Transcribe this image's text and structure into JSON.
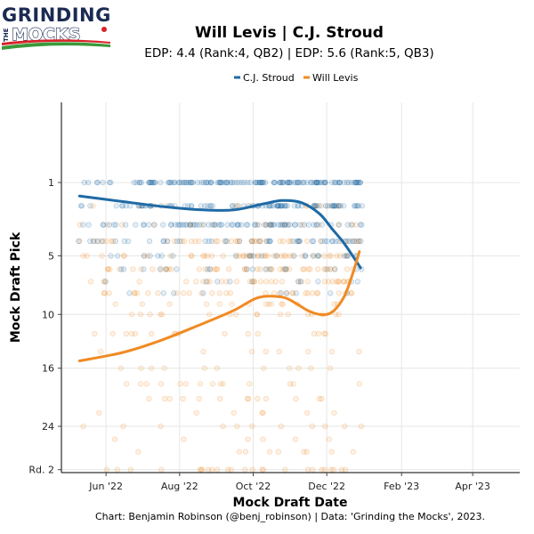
{
  "logo": {
    "line1": "GRINDING",
    "line2": "THE",
    "line3": "MOCKS"
  },
  "colors": {
    "stroud": "#1f6aa5",
    "levis": "#f08a24",
    "grid": "#e6e6e6",
    "navy": "#1a2a52",
    "red": "#d8232a",
    "green": "#3a9a3a"
  },
  "chart_data": {
    "type": "scatter",
    "title": "Will Levis | C.J. Stroud",
    "subtitle": "EDP: 4.4 (Rank:4, QB2) | EDP: 5.6 (Rank:5, QB3)",
    "xlabel": "Mock Draft Date",
    "ylabel": "Mock Draft Pick",
    "caption": "Chart: Benjamin Robinson (@benj_robinson) | Data: 'Grinding the Mocks', 2023.",
    "x_domain": [
      "2022-04-25",
      "2023-05-10"
    ],
    "y_range": [
      -0.5,
      31.5
    ],
    "y_sqrt_scale": true,
    "y_ticks": [
      {
        "value": 1,
        "label": "1"
      },
      {
        "value": 5,
        "label": "5"
      },
      {
        "value": 10,
        "label": "10"
      },
      {
        "value": 16,
        "label": "16"
      },
      {
        "value": 24,
        "label": "24"
      },
      {
        "value": 31,
        "label": "Rd. 2"
      }
    ],
    "x_ticks": [
      {
        "date": "2022-06-01",
        "label": "Jun '22"
      },
      {
        "date": "2022-08-01",
        "label": "Aug '22"
      },
      {
        "date": "2022-10-01",
        "label": "Oct '22"
      },
      {
        "date": "2022-12-01",
        "label": "Dec '22"
      },
      {
        "date": "2023-02-01",
        "label": "Feb '23"
      },
      {
        "date": "2023-04-01",
        "label": "Apr '23"
      }
    ],
    "legend": [
      "C.J. Stroud",
      "Will Levis"
    ],
    "series": [
      {
        "name": "C.J. Stroud",
        "color": "#1f6aa5",
        "trend": [
          {
            "x": "2022-05-10",
            "y": 1.55
          },
          {
            "x": "2022-06-15",
            "y": 1.8
          },
          {
            "x": "2022-07-20",
            "y": 2.05
          },
          {
            "x": "2022-08-20",
            "y": 2.2
          },
          {
            "x": "2022-09-15",
            "y": 2.2
          },
          {
            "x": "2022-10-10",
            "y": 1.9
          },
          {
            "x": "2022-10-25",
            "y": 1.75
          },
          {
            "x": "2022-11-10",
            "y": 1.85
          },
          {
            "x": "2022-11-25",
            "y": 2.4
          },
          {
            "x": "2022-12-05",
            "y": 3.2
          },
          {
            "x": "2022-12-15",
            "y": 4.1
          },
          {
            "x": "2022-12-24",
            "y": 5.2
          },
          {
            "x": "2022-12-29",
            "y": 5.9
          }
        ],
        "point_density": [
          {
            "value": 1,
            "weight": 0.3
          },
          {
            "value": 2,
            "weight": 0.24
          },
          {
            "value": 3,
            "weight": 0.17
          },
          {
            "value": 4,
            "weight": 0.12
          },
          {
            "value": 5,
            "weight": 0.07
          },
          {
            "value": 6,
            "weight": 0.05
          },
          {
            "value": 7,
            "weight": 0.03
          },
          {
            "value": 8,
            "weight": 0.02
          }
        ]
      },
      {
        "name": "Will Levis",
        "color": "#f08a24",
        "trend": [
          {
            "x": "2022-05-10",
            "y": 15.1
          },
          {
            "x": "2022-06-15",
            "y": 14.1
          },
          {
            "x": "2022-07-15",
            "y": 12.8
          },
          {
            "x": "2022-08-15",
            "y": 11.2
          },
          {
            "x": "2022-09-15",
            "y": 9.6
          },
          {
            "x": "2022-10-05",
            "y": 8.4
          },
          {
            "x": "2022-10-25",
            "y": 8.35
          },
          {
            "x": "2022-11-05",
            "y": 8.9
          },
          {
            "x": "2022-11-15",
            "y": 9.6
          },
          {
            "x": "2022-11-25",
            "y": 10.0
          },
          {
            "x": "2022-12-05",
            "y": 9.8
          },
          {
            "x": "2022-12-15",
            "y": 8.4
          },
          {
            "x": "2022-12-22",
            "y": 6.5
          },
          {
            "x": "2022-12-28",
            "y": 4.7
          }
        ],
        "point_density": [
          {
            "value": 2,
            "weight": 0.03
          },
          {
            "value": 3,
            "weight": 0.05
          },
          {
            "value": 4,
            "weight": 0.09
          },
          {
            "value": 5,
            "weight": 0.11
          },
          {
            "value": 6,
            "weight": 0.11
          },
          {
            "value": 7,
            "weight": 0.1
          },
          {
            "value": 8,
            "weight": 0.08
          },
          {
            "value": 9,
            "weight": 0.05
          },
          {
            "value": 10,
            "weight": 0.04
          },
          {
            "value": 12,
            "weight": 0.04
          },
          {
            "value": 14,
            "weight": 0.04
          },
          {
            "value": 16,
            "weight": 0.04
          },
          {
            "value": 18,
            "weight": 0.03
          },
          {
            "value": 20,
            "weight": 0.03
          },
          {
            "value": 22,
            "weight": 0.03
          },
          {
            "value": 24,
            "weight": 0.03
          },
          {
            "value": 26,
            "weight": 0.02
          },
          {
            "value": 28,
            "weight": 0.02
          },
          {
            "value": 31,
            "weight": 0.05
          }
        ]
      }
    ]
  }
}
